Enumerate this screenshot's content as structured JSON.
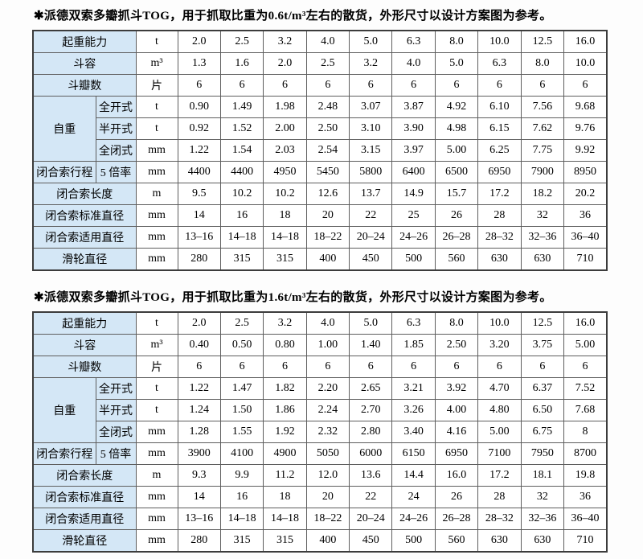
{
  "tables": [
    {
      "title": "✱派德双索多瓣抓斗TOG，用于抓取比重为0.6t/m³左右的散货，外形尺寸以设计方案图为参考。",
      "rows": [
        {
          "label": "起重能力",
          "unit": "t",
          "values": [
            "2.0",
            "2.5",
            "3.2",
            "4.0",
            "5.0",
            "6.3",
            "8.0",
            "10.0",
            "12.5",
            "16.0"
          ]
        },
        {
          "label": "斗容",
          "unit": "m³",
          "values": [
            "1.3",
            "1.6",
            "2.0",
            "2.5",
            "3.2",
            "4.0",
            "5.0",
            "6.3",
            "8.0",
            "10.0"
          ]
        },
        {
          "label": "斗瓣数",
          "unit": "片",
          "values": [
            "6",
            "6",
            "6",
            "6",
            "6",
            "6",
            "6",
            "6",
            "6",
            "6"
          ]
        },
        {
          "label": "自重",
          "sub": "全开式",
          "unit": "t",
          "values": [
            "0.90",
            "1.49",
            "1.98",
            "2.48",
            "3.07",
            "3.87",
            "4.92",
            "6.10",
            "7.56",
            "9.68"
          ]
        },
        {
          "sub": "半开式",
          "unit": "t",
          "values": [
            "0.92",
            "1.52",
            "2.00",
            "2.50",
            "3.10",
            "3.90",
            "4.98",
            "6.15",
            "7.62",
            "9.76"
          ]
        },
        {
          "sub": "全闭式",
          "unit": "mm",
          "values": [
            "1.22",
            "1.54",
            "2.03",
            "2.54",
            "3.15",
            "3.97",
            "5.00",
            "6.25",
            "7.75",
            "9.92"
          ]
        },
        {
          "label": "闭合索行程",
          "sub": "5 倍率",
          "unit": "mm",
          "values": [
            "4400",
            "4400",
            "4950",
            "5450",
            "5800",
            "6400",
            "6500",
            "6950",
            "7900",
            "8950"
          ]
        },
        {
          "label": "闭合索长度",
          "unit": "m",
          "values": [
            "9.5",
            "10.2",
            "10.2",
            "12.6",
            "13.7",
            "14.9",
            "15.7",
            "17.2",
            "18.2",
            "20.2"
          ]
        },
        {
          "label": "闭合索标准直径",
          "unit": "mm",
          "values": [
            "14",
            "16",
            "18",
            "20",
            "22",
            "25",
            "26",
            "28",
            "32",
            "36"
          ]
        },
        {
          "label": "闭合索适用直径",
          "unit": "mm",
          "values": [
            "13–16",
            "14–18",
            "14–18",
            "18–22",
            "20–24",
            "24–26",
            "26–28",
            "28–32",
            "32–36",
            "36–40"
          ]
        },
        {
          "label": "滑轮直径",
          "unit": "mm",
          "values": [
            "280",
            "315",
            "315",
            "400",
            "450",
            "500",
            "560",
            "630",
            "630",
            "710"
          ]
        }
      ]
    },
    {
      "title": "✱派德双索多瓣抓斗TOG，用于抓取比重为1.6t/m³左右的散货，外形尺寸以设计方案图为参考。",
      "rows": [
        {
          "label": "起重能力",
          "unit": "t",
          "values": [
            "2.0",
            "2.5",
            "3.2",
            "4.0",
            "5.0",
            "6.3",
            "8.0",
            "10.0",
            "12.5",
            "16.0"
          ]
        },
        {
          "label": "斗容",
          "unit": "m³",
          "values": [
            "0.40",
            "0.50",
            "0.80",
            "1.00",
            "1.40",
            "1.85",
            "2.50",
            "3.20",
            "3.75",
            "5.00"
          ]
        },
        {
          "label": "斗瓣数",
          "unit": "片",
          "values": [
            "6",
            "6",
            "6",
            "6",
            "6",
            "6",
            "6",
            "6",
            "6",
            "6"
          ]
        },
        {
          "label": "自重",
          "sub": "全开式",
          "unit": "t",
          "values": [
            "1.22",
            "1.47",
            "1.82",
            "2.20",
            "2.65",
            "3.21",
            "3.92",
            "4.70",
            "6.37",
            "7.52"
          ]
        },
        {
          "sub": "半开式",
          "unit": "t",
          "values": [
            "1.24",
            "1.50",
            "1.86",
            "2.24",
            "2.70",
            "3.26",
            "4.00",
            "4.80",
            "6.50",
            "7.68"
          ]
        },
        {
          "sub": "全闭式",
          "unit": "mm",
          "values": [
            "1.28",
            "1.55",
            "1.92",
            "2.32",
            "2.80",
            "3.40",
            "4.16",
            "5.00",
            "6.75",
            "8"
          ]
        },
        {
          "label": "闭合索行程",
          "sub": "5 倍率",
          "unit": "mm",
          "values": [
            "3900",
            "4100",
            "4900",
            "5050",
            "6000",
            "6150",
            "6950",
            "7100",
            "7950",
            "8700"
          ]
        },
        {
          "label": "闭合索长度",
          "unit": "m",
          "values": [
            "9.3",
            "9.9",
            "11.2",
            "12.0",
            "13.6",
            "14.4",
            "16.0",
            "17.2",
            "18.1",
            "19.8"
          ]
        },
        {
          "label": "闭合索标准直径",
          "unit": "mm",
          "values": [
            "14",
            "16",
            "18",
            "20",
            "22",
            "24",
            "26",
            "28",
            "32",
            "36"
          ]
        },
        {
          "label": "闭合索适用直径",
          "unit": "mm",
          "values": [
            "13–16",
            "14–18",
            "14–18",
            "18–22",
            "20–24",
            "24–26",
            "26–28",
            "28–32",
            "32–36",
            "36–40"
          ]
        },
        {
          "label": "滑轮直径",
          "unit": "mm",
          "values": [
            "280",
            "315",
            "315",
            "400",
            "450",
            "500",
            "560",
            "630",
            "630",
            "710"
          ]
        }
      ]
    }
  ],
  "colors": {
    "header_cell_bg": "#d4e7f6",
    "border": "#5e5e5e",
    "outer_border": "#3c3c3c",
    "text": "#000000"
  }
}
